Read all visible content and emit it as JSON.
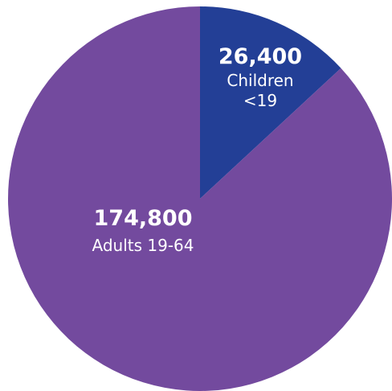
{
  "chart_data": {
    "type": "pie",
    "slices": [
      {
        "value_label": "26,400",
        "label_lines": [
          "Children",
          "<19"
        ],
        "value": 26400,
        "color": "#233f96"
      },
      {
        "value_label": "174,800",
        "label_lines": [
          "Adults 19-64"
        ],
        "value": 174800,
        "color": "#734a9e"
      }
    ],
    "start": "12 o'clock",
    "direction": "clockwise"
  }
}
